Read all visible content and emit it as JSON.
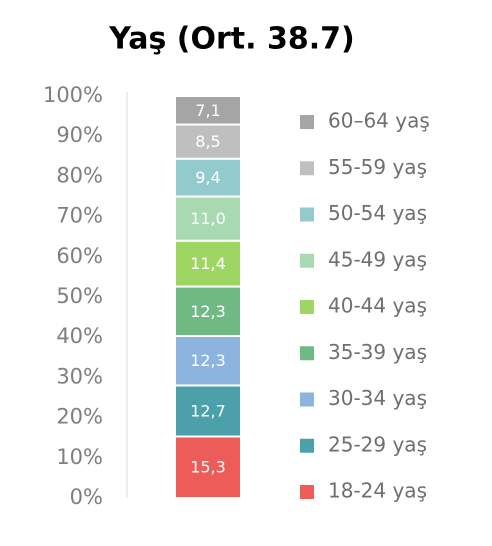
{
  "chart_data": {
    "type": "bar",
    "stacked": true,
    "title": "Yaş (Ort. 38.7)",
    "categories": [
      null
    ],
    "series": [
      {
        "name": "18-24 yaş",
        "color": "#ee5c5a",
        "values": [
          15.3
        ],
        "value_labels": [
          "15,3"
        ]
      },
      {
        "name": "25-29 yaş",
        "color": "#4ba0aa",
        "values": [
          12.7
        ],
        "value_labels": [
          "12,7"
        ]
      },
      {
        "name": "30-34 yaş",
        "color": "#8db4de",
        "values": [
          12.3
        ],
        "value_labels": [
          "12,3"
        ]
      },
      {
        "name": "35-39 yaş",
        "color": "#70b884",
        "values": [
          12.3
        ],
        "value_labels": [
          "12,3"
        ]
      },
      {
        "name": "40-44 yaş",
        "color": "#9fd663",
        "values": [
          11.4
        ],
        "value_labels": [
          "11,4"
        ]
      },
      {
        "name": "45-49 yaş",
        "color": "#a9d9b1",
        "values": [
          11.0
        ],
        "value_labels": [
          "11,0"
        ]
      },
      {
        "name": "50-54 yaş",
        "color": "#93cacd",
        "values": [
          9.4
        ],
        "value_labels": [
          "9,4"
        ]
      },
      {
        "name": "55-59 yaş",
        "color": "#bfbfbf",
        "values": [
          8.5
        ],
        "value_labels": [
          "8,5"
        ]
      },
      {
        "name": "60–64 yaş",
        "color": "#a5a5a5",
        "values": [
          7.1
        ],
        "value_labels": [
          "7,1"
        ]
      }
    ],
    "ylim": [
      0,
      100
    ],
    "yticks": [
      {
        "value": 0,
        "label": "0%"
      },
      {
        "value": 10,
        "label": "10%"
      },
      {
        "value": 20,
        "label": "20%"
      },
      {
        "value": 30,
        "label": "30%"
      },
      {
        "value": 40,
        "label": "40%"
      },
      {
        "value": 50,
        "label": "50%"
      },
      {
        "value": 60,
        "label": "60%"
      },
      {
        "value": 70,
        "label": "70%"
      },
      {
        "value": 80,
        "label": "80%"
      },
      {
        "value": 90,
        "label": "90%"
      },
      {
        "value": 100,
        "label": "100%"
      }
    ],
    "legend": "right"
  }
}
